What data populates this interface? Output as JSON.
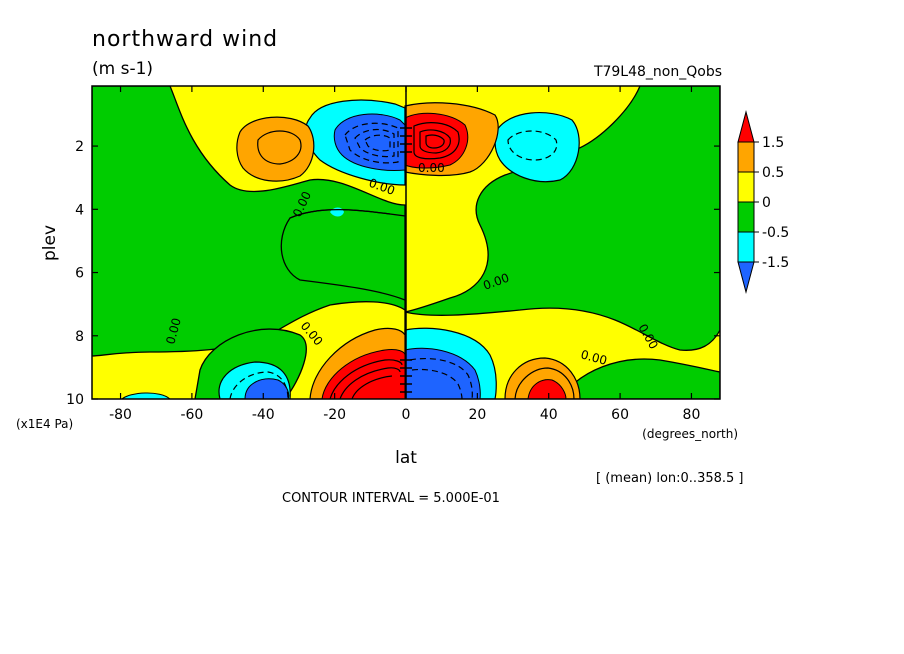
{
  "chart_data": {
    "type": "heatmap",
    "title": "northward wind",
    "units": "(m s-1)",
    "case_name": "T79L48_non_Qobs",
    "xlabel": "lat",
    "xunits": "(degrees_north)",
    "ylabel": "plev",
    "yunits": "(x1E4 Pa)",
    "xlim": [
      -88,
      88
    ],
    "ylim": [
      10,
      0.1
    ],
    "x_ticks": [
      "-80",
      "-60",
      "-40",
      "-20",
      "0",
      "20",
      "40",
      "60",
      "80"
    ],
    "x_tick_values": [
      -80,
      -60,
      -40,
      -20,
      0,
      20,
      40,
      60,
      80
    ],
    "y_ticks": [
      "2",
      "4",
      "6",
      "8",
      "10"
    ],
    "y_tick_values": [
      2,
      4,
      6,
      8,
      10
    ],
    "mean_info": "[ (mean) lon:0..358.5 ]",
    "contour_interval": "CONTOUR INTERVAL = 5.000E-01",
    "contour_labels": [
      "0.00",
      "0.00",
      "0.00",
      "0.00",
      "0.00",
      "0.00",
      "0.00",
      "0.00"
    ],
    "legend_levels": [
      "1.5",
      "0.5",
      "0",
      "-0.5",
      "-1.5"
    ],
    "legend_colors": [
      "#ff0000",
      "#ffa500",
      "#ffff00",
      "#00cc00",
      "#00ffff",
      "#1e64ff"
    ],
    "features": [
      {
        "lat": -37,
        "plev": 2.0,
        "value": 0.8
      },
      {
        "lat": -8,
        "plev": 1.8,
        "value": -2.5
      },
      {
        "lat": 8,
        "plev": 1.8,
        "value": 2.5
      },
      {
        "lat": 38,
        "plev": 2.1,
        "value": -0.7
      },
      {
        "lat": -30,
        "plev": 4.0,
        "value": -0.5
      },
      {
        "lat": -38,
        "plev": 9.8,
        "value": -1.8
      },
      {
        "lat": -8,
        "plev": 9.6,
        "value": 3.0
      },
      {
        "lat": 8,
        "plev": 9.6,
        "value": -3.0
      },
      {
        "lat": 38,
        "plev": 9.8,
        "value": 1.8
      }
    ]
  }
}
